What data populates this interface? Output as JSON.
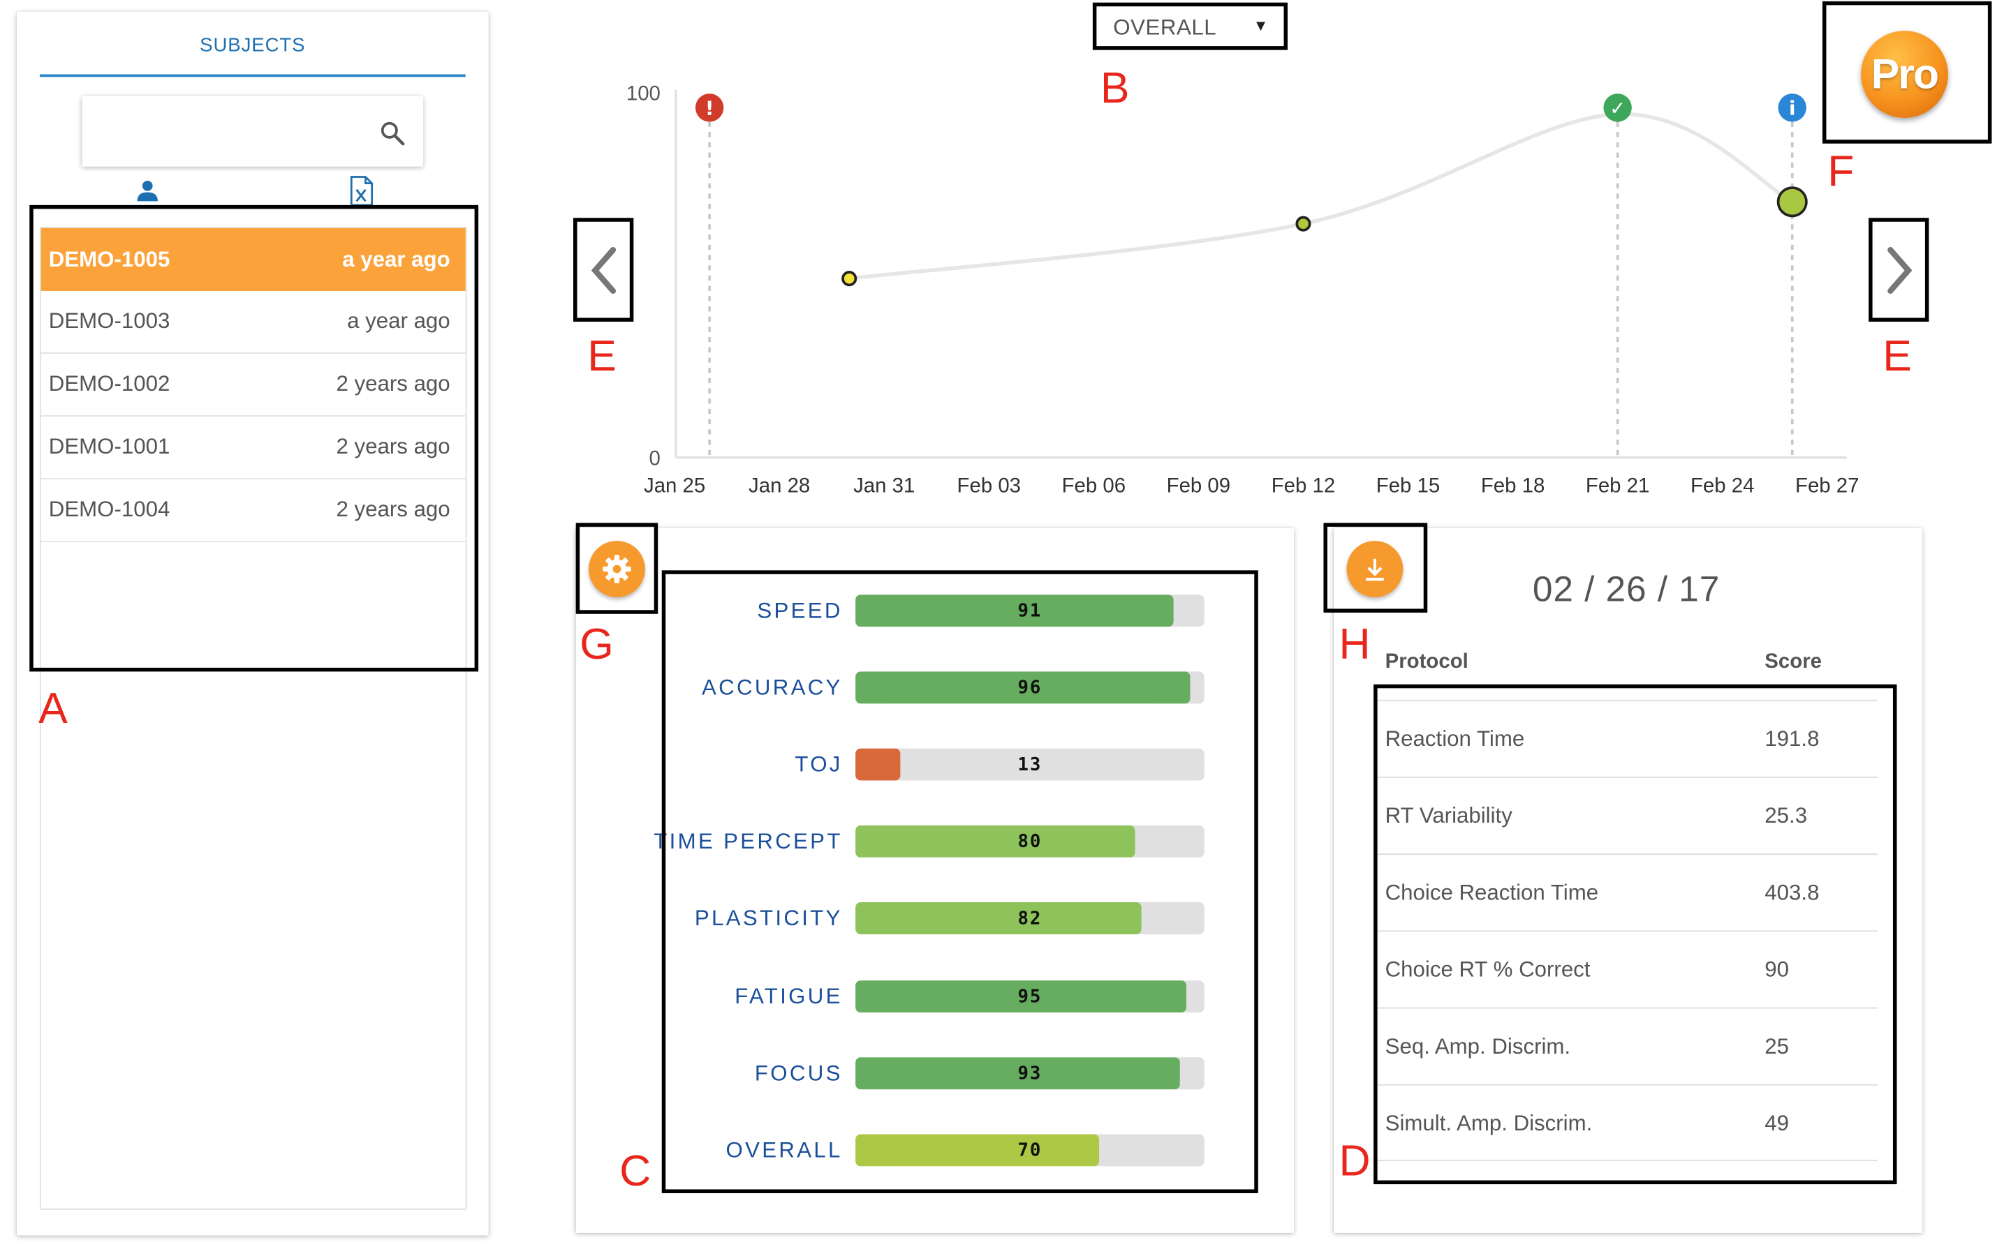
{
  "subjects_panel": {
    "title": "SUBJECTS",
    "search": {
      "value": "",
      "placeholder": ""
    },
    "tabs": [
      {
        "icon": "person-icon"
      },
      {
        "icon": "spreadsheet-file-icon"
      }
    ],
    "items": [
      {
        "id": "DEMO-1005",
        "time": "a year ago",
        "selected": true
      },
      {
        "id": "DEMO-1003",
        "time": "a year ago",
        "selected": false
      },
      {
        "id": "DEMO-1002",
        "time": "2 years ago",
        "selected": false
      },
      {
        "id": "DEMO-1001",
        "time": "2 years ago",
        "selected": false
      },
      {
        "id": "DEMO-1004",
        "time": "2 years ago",
        "selected": false
      }
    ]
  },
  "metric_select": {
    "value": "OVERALL"
  },
  "chart_data": {
    "type": "line",
    "x_ticks": [
      "Jan 25",
      "Jan 28",
      "Jan 31",
      "Feb 03",
      "Feb 06",
      "Feb 09",
      "Feb 12",
      "Feb 15",
      "Feb 18",
      "Feb 21",
      "Feb 24",
      "Feb 27"
    ],
    "y_ticks": [
      "0",
      "100"
    ],
    "ylim": [
      0,
      100
    ],
    "points": [
      {
        "date": "Jan 30",
        "value": 49
      },
      {
        "date": "Feb 12",
        "value": 64
      },
      {
        "date": "Feb 21",
        "value": 94
      },
      {
        "date": "Feb 26",
        "value": 70
      }
    ],
    "markers": [
      {
        "date": "Jan 26",
        "kind": "alert",
        "symbol": "!",
        "color": "#d13c2a"
      },
      {
        "date": "Feb 21",
        "kind": "success",
        "symbol": "✓",
        "color": "#3ea85a"
      },
      {
        "date": "Feb 26",
        "kind": "info",
        "symbol": "i",
        "color": "#2a86d6"
      }
    ],
    "grid": false
  },
  "pro_badge": {
    "label": "Pro"
  },
  "bars": [
    {
      "label": "SPEED",
      "value": 91,
      "color": "#66ad5f"
    },
    {
      "label": "ACCURACY",
      "value": 96,
      "color": "#66ad5f"
    },
    {
      "label": "TOJ",
      "value": 13,
      "color": "#d9693a"
    },
    {
      "label": "TIME PERCEPT",
      "value": 80,
      "color": "#8dc35a"
    },
    {
      "label": "PLASTICITY",
      "value": 82,
      "color": "#8dc35a"
    },
    {
      "label": "FATIGUE",
      "value": 95,
      "color": "#66ad5f"
    },
    {
      "label": "FOCUS",
      "value": 93,
      "color": "#66ad5f"
    },
    {
      "label": "OVERALL",
      "value": 70,
      "color": "#adc845"
    }
  ],
  "score_card": {
    "date": "02 / 26 / 17",
    "headers": {
      "protocol": "Protocol",
      "score": "Score"
    },
    "rows": [
      {
        "protocol": "Reaction Time",
        "score": "191.8"
      },
      {
        "protocol": "RT Variability",
        "score": "25.3"
      },
      {
        "protocol": "Choice Reaction Time",
        "score": "403.8"
      },
      {
        "protocol": "Choice RT % Correct",
        "score": "90"
      },
      {
        "protocol": "Seq. Amp. Discrim.",
        "score": "25"
      },
      {
        "protocol": "Simult. Amp. Discrim.",
        "score": "49"
      }
    ]
  },
  "annotations": {
    "A": "A",
    "B": "B",
    "C": "C",
    "D": "D",
    "E_left": "E",
    "E_right": "E",
    "F": "F",
    "G": "G",
    "H": "H"
  },
  "colors": {
    "accent": "#f79a2e",
    "selected_row": "#fba23a",
    "link_blue": "#1e6fb0",
    "annotation_red": "#e8261c"
  }
}
